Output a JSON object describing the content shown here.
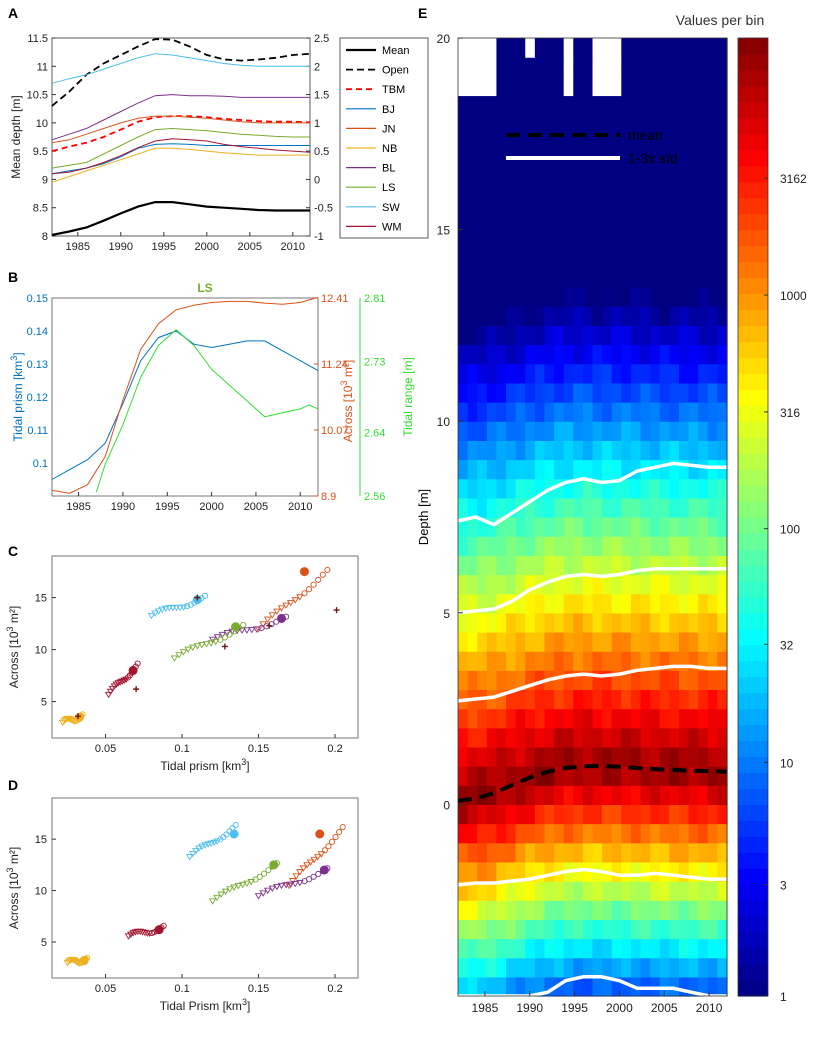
{
  "figure": {
    "panel_letters": [
      "A",
      "B",
      "C",
      "D",
      "E"
    ]
  },
  "chart_data": [
    {
      "panel": "A",
      "type": "line",
      "xlabel": "",
      "ylabel": "Mean depth [m]",
      "xlim": [
        1982,
        2012
      ],
      "ylim": [
        8,
        11.5
      ],
      "y2lim": [
        -1,
        2.5
      ],
      "x_ticks": [
        1985,
        1990,
        1995,
        2000,
        2005,
        2010
      ],
      "y_ticks": [
        8,
        8.5,
        9,
        9.5,
        10,
        10.5,
        11,
        11.5
      ],
      "y2_ticks": [
        -1,
        -0.5,
        0,
        0.5,
        1,
        1.5,
        2,
        2.5
      ],
      "x": [
        1982,
        1984,
        1986,
        1988,
        1990,
        1992,
        1994,
        1996,
        1998,
        2000,
        2002,
        2004,
        2006,
        2008,
        2010,
        2012
      ],
      "series": [
        {
          "name": "Mean",
          "color": "#000000",
          "dash": "",
          "width": 2.2,
          "values": [
            8.02,
            8.08,
            8.15,
            8.27,
            8.4,
            8.52,
            8.6,
            8.6,
            8.56,
            8.52,
            8.5,
            8.48,
            8.46,
            8.45,
            8.45,
            8.45
          ]
        },
        {
          "name": "Open",
          "color": "#000000",
          "dash": "7,4",
          "width": 1.8,
          "values": [
            10.3,
            10.55,
            10.85,
            11.05,
            11.2,
            11.35,
            11.48,
            11.47,
            11.35,
            11.2,
            11.12,
            11.1,
            11.12,
            11.15,
            11.2,
            11.22
          ]
        },
        {
          "name": "TBM",
          "color": "#ff0000",
          "dash": "6,4",
          "width": 1.8,
          "values": [
            9.5,
            9.58,
            9.65,
            9.75,
            9.88,
            10.02,
            10.1,
            10.12,
            10.12,
            10.1,
            10.07,
            10.05,
            10.03,
            10.02,
            10.02,
            10.01
          ]
        },
        {
          "name": "BJ",
          "color": "#0072bd",
          "dash": "",
          "width": 1,
          "values": [
            9.1,
            9.15,
            9.2,
            9.28,
            9.4,
            9.55,
            9.62,
            9.63,
            9.62,
            9.6,
            9.6,
            9.6,
            9.6,
            9.6,
            9.6,
            9.6
          ]
        },
        {
          "name": "JN",
          "color": "#d95319",
          "dash": "",
          "width": 1,
          "values": [
            9.65,
            9.7,
            9.8,
            9.9,
            10.0,
            10.08,
            10.12,
            10.12,
            10.1,
            10.08,
            10.05,
            10.02,
            10.0,
            10.0,
            10.0,
            10.0
          ]
        },
        {
          "name": "NB",
          "color": "#edb120",
          "dash": "",
          "width": 1,
          "values": [
            8.95,
            9.05,
            9.15,
            9.25,
            9.35,
            9.45,
            9.55,
            9.55,
            9.53,
            9.5,
            9.47,
            9.45,
            9.43,
            9.43,
            9.43,
            9.43
          ]
        },
        {
          "name": "BL",
          "color": "#7e2f8e",
          "dash": "",
          "width": 1,
          "values": [
            9.7,
            9.8,
            9.9,
            10.05,
            10.2,
            10.35,
            10.48,
            10.5,
            10.48,
            10.48,
            10.47,
            10.45,
            10.45,
            10.45,
            10.45,
            10.45
          ]
        },
        {
          "name": "LS",
          "color": "#77ac30",
          "dash": "",
          "width": 1,
          "values": [
            9.2,
            9.25,
            9.3,
            9.45,
            9.6,
            9.75,
            9.88,
            9.9,
            9.88,
            9.86,
            9.83,
            9.8,
            9.78,
            9.76,
            9.75,
            9.75
          ]
        },
        {
          "name": "SW",
          "color": "#4dbeee",
          "dash": "",
          "width": 1,
          "values": [
            10.7,
            10.78,
            10.85,
            10.95,
            11.05,
            11.15,
            11.22,
            11.2,
            11.15,
            11.1,
            11.05,
            11.02,
            11.0,
            11.0,
            11.0,
            11.0
          ]
        },
        {
          "name": "WM",
          "color": "#a2142f",
          "dash": "",
          "width": 1,
          "values": [
            9.1,
            9.13,
            9.2,
            9.3,
            9.42,
            9.56,
            9.68,
            9.72,
            9.7,
            9.68,
            9.62,
            9.58,
            9.55,
            9.52,
            9.5,
            9.48
          ]
        }
      ]
    },
    {
      "panel": "B",
      "type": "line",
      "title": "LS",
      "ylabel": "Tidal prism [km³]",
      "y2label": "Across [10³ m²]",
      "y3label": "Tidal range [m]",
      "xlim": [
        1982,
        2012
      ],
      "ylim": [
        0.09,
        0.15
      ],
      "y2lim": [
        8.9,
        12.41
      ],
      "y3lim": [
        2.56,
        2.81
      ],
      "x_ticks": [
        1985,
        1990,
        1995,
        2000,
        2005,
        2010
      ],
      "y_ticks": [
        "0.1",
        "0.11",
        "0.12",
        "0.13",
        "0.14",
        "0.15"
      ],
      "y2_ticks": [
        "8.9",
        "10.07",
        "11.24",
        "12.41"
      ],
      "y3_ticks": [
        "2.56",
        "2.64",
        "2.73",
        "2.81"
      ],
      "series": [
        {
          "name": "Tidal prism",
          "axis": "left",
          "color": "#0072bd",
          "x": [
            1982,
            1984,
            1986,
            1988,
            1990,
            1992,
            1994,
            1996,
            1998,
            2000,
            2002,
            2004,
            2006,
            2008,
            2010,
            2012
          ],
          "values": [
            0.095,
            0.098,
            0.101,
            0.106,
            0.118,
            0.131,
            0.138,
            0.14,
            0.136,
            0.135,
            0.136,
            0.137,
            0.137,
            0.134,
            0.131,
            0.128
          ]
        },
        {
          "name": "Across",
          "axis": "right",
          "color": "#d95319",
          "x": [
            1982,
            1984,
            1986,
            1988,
            1990,
            1992,
            1994,
            1996,
            1998,
            2000,
            2002,
            2004,
            2006,
            2008,
            2010,
            2012
          ],
          "values": [
            9.0,
            8.95,
            9.1,
            9.6,
            10.6,
            11.5,
            11.95,
            12.2,
            12.28,
            12.33,
            12.35,
            12.35,
            12.32,
            12.3,
            12.33,
            12.42
          ]
        },
        {
          "name": "Tidal range",
          "axis": "far-right",
          "color": "#33dd33",
          "x": [
            1987,
            1988,
            1990,
            1992,
            1994,
            1996,
            1998,
            2000,
            2002,
            2004,
            2006,
            2008,
            2010,
            2011,
            2012
          ],
          "values": [
            2.565,
            2.6,
            2.65,
            2.71,
            2.75,
            2.77,
            2.75,
            2.72,
            2.7,
            2.68,
            2.66,
            2.665,
            2.67,
            2.675,
            2.67
          ]
        }
      ]
    },
    {
      "panel": "C",
      "type": "scatter",
      "xlabel": "Tidal prism [km³]",
      "ylabel": "Across [10³ m²]",
      "xlim": [
        0.015,
        0.215
      ],
      "ylim": [
        1.5,
        19
      ],
      "x_ticks": [
        "0.05",
        "0.1",
        "0.15",
        "0.2"
      ],
      "y_ticks": [
        "5",
        "10",
        "15"
      ],
      "series": [
        {
          "name": "SW",
          "color": "#4dbeee",
          "x0": 0.08,
          "y0": 13.3,
          "x1": 0.115,
          "y1": 15.0,
          "end": [
            0.11,
            14.8
          ],
          "plus": [
            0.11,
            15.0
          ]
        },
        {
          "name": "JN",
          "color": "#d95319",
          "x0": 0.15,
          "y0": 12.0,
          "x1": 0.195,
          "y1": 17.5,
          "end": [
            0.18,
            17.5
          ],
          "plus": [
            0.201,
            13.8
          ]
        },
        {
          "name": "BL",
          "color": "#7e2f8e",
          "x0": 0.12,
          "y0": 11.0,
          "x1": 0.168,
          "y1": 13.0,
          "end": [
            0.165,
            13.0
          ],
          "plus": [
            0.157,
            12.3
          ]
        },
        {
          "name": "LS",
          "color": "#77ac30",
          "x0": 0.095,
          "y0": 9.2,
          "x1": 0.14,
          "y1": 12.2,
          "end": [
            0.135,
            12.2
          ],
          "plus": [
            0.128,
            10.3
          ]
        },
        {
          "name": "WM",
          "color": "#a2142f",
          "x0": 0.052,
          "y0": 5.7,
          "x1": 0.071,
          "y1": 8.5,
          "end": [
            0.068,
            8.0
          ],
          "plus": [
            0.07,
            6.2
          ]
        },
        {
          "name": "NB",
          "color": "#edb120",
          "x0": 0.022,
          "y0": 3.0,
          "x1": 0.035,
          "y1": 3.6,
          "end": [
            0.033,
            3.5
          ],
          "plus": [
            0.032,
            3.6
          ]
        }
      ]
    },
    {
      "panel": "D",
      "type": "scatter",
      "xlabel": "Tidal Prism [km³]",
      "ylabel": "Across [10³ m²]",
      "xlim": [
        0.015,
        0.215
      ],
      "ylim": [
        1.5,
        19
      ],
      "x_ticks": [
        "0.05",
        "0.1",
        "0.15",
        "0.2"
      ],
      "y_ticks": [
        "5",
        "10",
        "15"
      ],
      "series": [
        {
          "name": "SW",
          "color": "#4dbeee",
          "x0": 0.105,
          "y0": 13.3,
          "x1": 0.135,
          "y1": 16.2,
          "end": [
            0.134,
            15.5
          ]
        },
        {
          "name": "JN",
          "color": "#d95319",
          "x0": 0.17,
          "y0": 10.5,
          "x1": 0.205,
          "y1": 16.0,
          "end": [
            0.19,
            15.5
          ]
        },
        {
          "name": "BL",
          "color": "#7e2f8e",
          "x0": 0.15,
          "y0": 9.5,
          "x1": 0.195,
          "y1": 12.0,
          "end": [
            0.193,
            12.0
          ]
        },
        {
          "name": "LS",
          "color": "#77ac30",
          "x0": 0.12,
          "y0": 9.0,
          "x1": 0.162,
          "y1": 12.5,
          "end": [
            0.16,
            12.5
          ]
        },
        {
          "name": "WM",
          "color": "#a2142f",
          "x0": 0.065,
          "y0": 5.6,
          "x1": 0.088,
          "y1": 6.4,
          "end": [
            0.085,
            6.2
          ]
        },
        {
          "name": "NB",
          "color": "#edb120",
          "x0": 0.025,
          "y0": 3.0,
          "x1": 0.038,
          "y1": 3.3,
          "end": [
            0.036,
            3.2
          ]
        }
      ]
    },
    {
      "panel": "E",
      "type": "heatmap",
      "title": "Values per bin",
      "ylabel": "Depth [m]",
      "xlim": [
        1982,
        2012
      ],
      "ylim": [
        -5,
        20
      ],
      "x_ticks": [
        1985,
        1990,
        1995,
        2000,
        2005,
        2010
      ],
      "y_ticks": [
        0,
        5,
        10,
        15,
        20
      ],
      "colorbar_ticks": [
        "1",
        "3",
        "10",
        "32",
        "100",
        "316",
        "1000",
        "3162"
      ],
      "colorbar_range_log10": [
        0,
        4.1
      ],
      "legend": [
        {
          "label": "mean",
          "style": "black-dashed"
        },
        {
          "label": "1-3x std",
          "style": "white-solid"
        }
      ],
      "mean_line": {
        "x": [
          1982,
          1984,
          1986,
          1988,
          1990,
          1992,
          1994,
          1996,
          1998,
          2000,
          2002,
          2004,
          2006,
          2008,
          2010,
          2012
        ],
        "y": [
          0.1,
          0.15,
          0.3,
          0.5,
          0.7,
          0.85,
          0.95,
          1.0,
          1.0,
          0.98,
          0.95,
          0.92,
          0.9,
          0.88,
          0.87,
          0.85
        ]
      },
      "std_lines": [
        {
          "x": [
            1982,
            1984,
            1986,
            1988,
            1990,
            1992,
            1994,
            1996,
            1998,
            2000,
            2002,
            2004,
            2006,
            2008,
            2010,
            2012
          ],
          "y": [
            7.4,
            7.5,
            7.3,
            7.6,
            7.9,
            8.2,
            8.4,
            8.5,
            8.4,
            8.45,
            8.7,
            8.8,
            8.9,
            8.85,
            8.8,
            8.8
          ]
        },
        {
          "x": [
            1982,
            1984,
            1986,
            1988,
            1990,
            1992,
            1994,
            1996,
            1998,
            2000,
            2002,
            2004,
            2006,
            2008,
            2010,
            2012
          ],
          "y": [
            5.0,
            5.05,
            5.1,
            5.3,
            5.6,
            5.8,
            5.95,
            6.0,
            5.95,
            6.0,
            6.1,
            6.15,
            6.15,
            6.15,
            6.15,
            6.15
          ]
        },
        {
          "x": [
            1982,
            1984,
            1986,
            1988,
            1990,
            1992,
            1994,
            1996,
            1998,
            2000,
            2002,
            2004,
            2006,
            2008,
            2010,
            2012
          ],
          "y": [
            2.7,
            2.75,
            2.8,
            2.95,
            3.1,
            3.25,
            3.35,
            3.4,
            3.35,
            3.4,
            3.5,
            3.55,
            3.6,
            3.6,
            3.55,
            3.55
          ]
        },
        {
          "x": [
            1982,
            1984,
            1986,
            1988,
            1990,
            1992,
            1994,
            1996,
            1998,
            2000,
            2002,
            2004,
            2006,
            2008,
            2010,
            2012
          ],
          "y": [
            -2.1,
            -2.05,
            -2.05,
            -2.0,
            -1.95,
            -1.85,
            -1.75,
            -1.7,
            -1.75,
            -1.85,
            -1.85,
            -1.8,
            -1.85,
            -1.9,
            -1.95,
            -1.95
          ]
        },
        {
          "x": [
            1982,
            1984,
            1986,
            1988,
            1990,
            1992,
            1994,
            1996,
            1998,
            2000,
            2002,
            2004,
            2006,
            2008,
            2010,
            2012
          ],
          "y": [
            -5,
            -5,
            -5,
            -5,
            -5,
            -4.9,
            -4.6,
            -4.5,
            -4.5,
            -4.6,
            -4.8,
            -4.8,
            -4.8,
            -4.9,
            -5,
            -5
          ]
        }
      ]
    }
  ]
}
